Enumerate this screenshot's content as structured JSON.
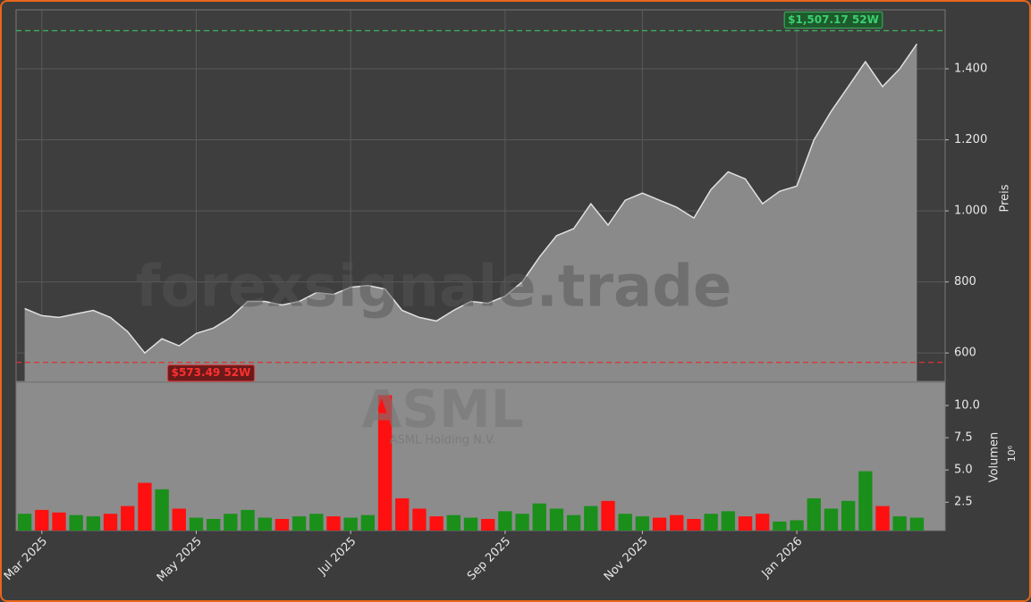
{
  "chart_data": {
    "type": "price-volume",
    "watermark": "forexsignale.trade",
    "symbol": "ASML",
    "company": "ASML Holding N.V.",
    "categories": [
      null,
      "Mar 2025",
      null,
      null,
      null,
      null,
      null,
      null,
      null,
      null,
      "May 2025",
      null,
      null,
      null,
      null,
      null,
      null,
      null,
      null,
      "Jul 2025",
      null,
      null,
      null,
      null,
      null,
      null,
      null,
      null,
      "Sep 2025",
      null,
      null,
      null,
      null,
      null,
      null,
      null,
      "Nov 2025",
      null,
      null,
      null,
      null,
      null,
      null,
      null,
      null,
      "Jan 2026",
      null,
      null,
      null,
      null,
      null,
      null,
      null
    ],
    "price": {
      "name": "Preis",
      "color": "#e0e0e0",
      "fill": "#8a8a8a",
      "values": [
        725,
        705,
        700,
        710,
        720,
        700,
        660,
        600,
        640,
        620,
        655,
        670,
        700,
        745,
        745,
        735,
        745,
        770,
        765,
        785,
        790,
        780,
        720,
        700,
        690,
        720,
        745,
        740,
        760,
        800,
        870,
        930,
        950,
        1020,
        960,
        1030,
        1050,
        1030,
        1010,
        980,
        1060,
        1110,
        1090,
        1020,
        1055,
        1070,
        1200,
        1280,
        1350,
        1420,
        1350,
        1400,
        1470
      ],
      "ylim": [
        520,
        1566
      ],
      "yticks": [
        600,
        800,
        {
          "value": 1000,
          "label": "1.000"
        },
        {
          "value": 1200,
          "label": "1.200"
        },
        {
          "value": 1400,
          "label": "1.400"
        }
      ]
    },
    "high": {
      "value": 1507.17,
      "label": "$1,507.17 52W",
      "color": "#3cb55e"
    },
    "low": {
      "value": 573.49,
      "label": "$573.49 52W",
      "color": "#e03030"
    },
    "volume": {
      "name": "Volumen",
      "unit": "10⁶",
      "up_color": "#1a8f1a",
      "down_color": "#ff1010",
      "values": [
        1.6,
        1.9,
        1.7,
        1.5,
        1.4,
        1.6,
        2.2,
        4.0,
        3.5,
        2.0,
        1.3,
        1.2,
        1.6,
        1.9,
        1.3,
        1.2,
        1.4,
        1.6,
        1.4,
        1.3,
        1.5,
        10.8,
        2.8,
        2.0,
        1.4,
        1.5,
        1.3,
        1.2,
        1.8,
        1.6,
        2.4,
        2.0,
        1.5,
        2.2,
        2.6,
        1.6,
        1.4,
        1.3,
        1.5,
        1.2,
        1.6,
        1.8,
        1.4,
        1.6,
        1.0,
        1.1,
        2.8,
        2.0,
        2.6,
        4.9,
        2.2,
        1.4,
        1.3
      ],
      "ylim": [
        0.3,
        11.8
      ],
      "yticks": [
        2.5,
        {
          "value": 5,
          "label": "5.0"
        },
        {
          "value": 7.5,
          "label": "7.5"
        },
        {
          "value": 10,
          "label": "10.0"
        }
      ]
    },
    "grid": true
  }
}
